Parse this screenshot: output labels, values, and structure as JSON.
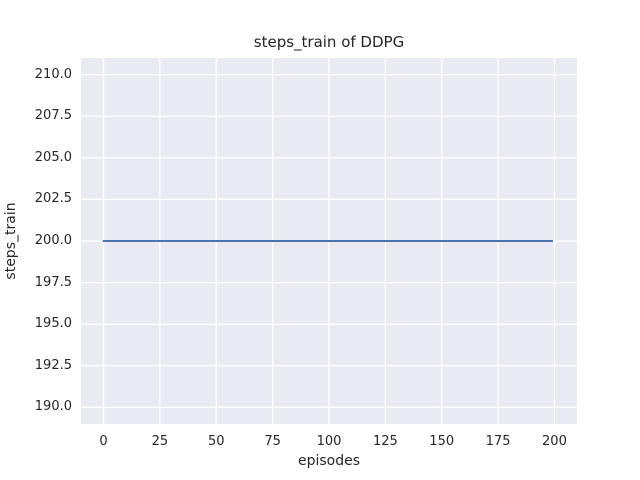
{
  "chart_data": {
    "type": "line",
    "title": "steps_train of DDPG",
    "xlabel": "episodes",
    "ylabel": "steps_train",
    "xlim": [
      -10,
      210
    ],
    "ylim": [
      189,
      211
    ],
    "grid": true,
    "grid_style": "seaborn-darkgrid",
    "legend": null,
    "x_tick_values": [
      0,
      25,
      50,
      75,
      100,
      125,
      150,
      175,
      200
    ],
    "x_tick_labels": [
      "0",
      "25",
      "50",
      "75",
      "100",
      "125",
      "150",
      "175",
      "200"
    ],
    "y_tick_values": [
      190.0,
      192.5,
      195.0,
      197.5,
      200.0,
      202.5,
      205.0,
      207.5,
      210.0
    ],
    "y_tick_labels": [
      "190.0",
      "192.5",
      "195.0",
      "197.5",
      "200.0",
      "202.5",
      "205.0",
      "207.5",
      "210.0"
    ],
    "series": [
      {
        "name": "steps_train",
        "color": "#4C72B0",
        "line_width": 2,
        "constant_value": 200,
        "n_points": 200,
        "x": [
          0,
          199
        ],
        "y": [
          200,
          200
        ],
        "note": "constant value 200 for every episode from 0 to 199"
      }
    ],
    "colors": {
      "figure_background": "#FFFFFF",
      "axes_background": "#EAEAF2",
      "grid_line": "#FFFFFF",
      "text": "#262626",
      "line": "#4C72B0"
    }
  }
}
